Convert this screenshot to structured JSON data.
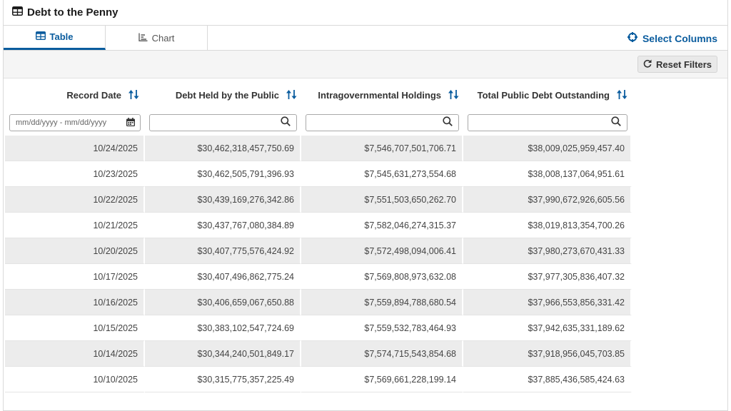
{
  "header": {
    "title": "Debt to the Penny"
  },
  "tabs": {
    "table": "Table",
    "chart": "Chart"
  },
  "select_columns_label": "Select Columns",
  "reset_filters_label": "Reset Filters",
  "accent_color": "#0a5c9e",
  "columns": [
    "Record Date",
    "Debt Held by the Public",
    "Intragovernmental Holdings",
    "Total Public Debt Outstanding"
  ],
  "date_filter_placeholder": "mm/dd/yyyy - mm/dd/yyyy",
  "rows": [
    [
      "10/24/2025",
      "$30,462,318,457,750.69",
      "$7,546,707,501,706.71",
      "$38,009,025,959,457.40"
    ],
    [
      "10/23/2025",
      "$30,462,505,791,396.93",
      "$7,545,631,273,554.68",
      "$38,008,137,064,951.61"
    ],
    [
      "10/22/2025",
      "$30,439,169,276,342.86",
      "$7,551,503,650,262.70",
      "$37,990,672,926,605.56"
    ],
    [
      "10/21/2025",
      "$30,437,767,080,384.89",
      "$7,582,046,274,315.37",
      "$38,019,813,354,700.26"
    ],
    [
      "10/20/2025",
      "$30,407,775,576,424.92",
      "$7,572,498,094,006.41",
      "$37,980,273,670,431.33"
    ],
    [
      "10/17/2025",
      "$30,407,496,862,775.24",
      "$7,569,808,973,632.08",
      "$37,977,305,836,407.32"
    ],
    [
      "10/16/2025",
      "$30,406,659,067,650.88",
      "$7,559,894,788,680.54",
      "$37,966,553,856,331.42"
    ],
    [
      "10/15/2025",
      "$30,383,102,547,724.69",
      "$7,559,532,783,464.93",
      "$37,942,635,331,189.62"
    ],
    [
      "10/14/2025",
      "$30,344,240,501,849.17",
      "$7,574,715,543,854.68",
      "$37,918,956,045,703.85"
    ],
    [
      "10/10/2025",
      "$30,315,775,357,225.49",
      "$7,569,661,228,199.14",
      "$37,885,436,585,424.63"
    ]
  ]
}
